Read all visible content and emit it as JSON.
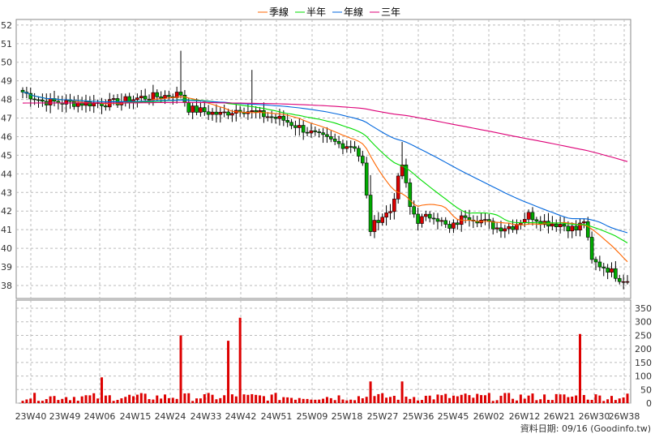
{
  "chart_data": [
    {
      "type": "candlestick",
      "legend_position": "top-center",
      "grid": true,
      "ylim": [
        37.3,
        52.3
      ],
      "y_ticks": [
        38,
        39,
        40,
        41,
        42,
        43,
        44,
        45,
        46,
        47,
        48,
        49,
        50,
        51,
        52
      ],
      "x_tick_labels": [
        "23W40",
        "23W49",
        "24W06",
        "24W15",
        "24W24",
        "24W33",
        "24W42",
        "24W51",
        "25W09",
        "25W18",
        "25W27",
        "25W36",
        "25W45",
        "26W02",
        "26W12",
        "26W21",
        "26W30",
        "26W38"
      ],
      "series": [
        {
          "name": "季線",
          "color": "#ff6600"
        },
        {
          "name": "半年",
          "color": "#00dd00"
        },
        {
          "name": "年線",
          "color": "#0066dd"
        },
        {
          "name": "三年",
          "color": "#dd0077"
        }
      ]
    },
    {
      "type": "bar",
      "ylim": [
        0,
        380
      ],
      "y_ticks": [
        0,
        50,
        100,
        150,
        200,
        250,
        300,
        350
      ],
      "color": "#dd0000"
    }
  ],
  "footer_text": "資料日期: 09/16  (Goodinfo.tw)"
}
